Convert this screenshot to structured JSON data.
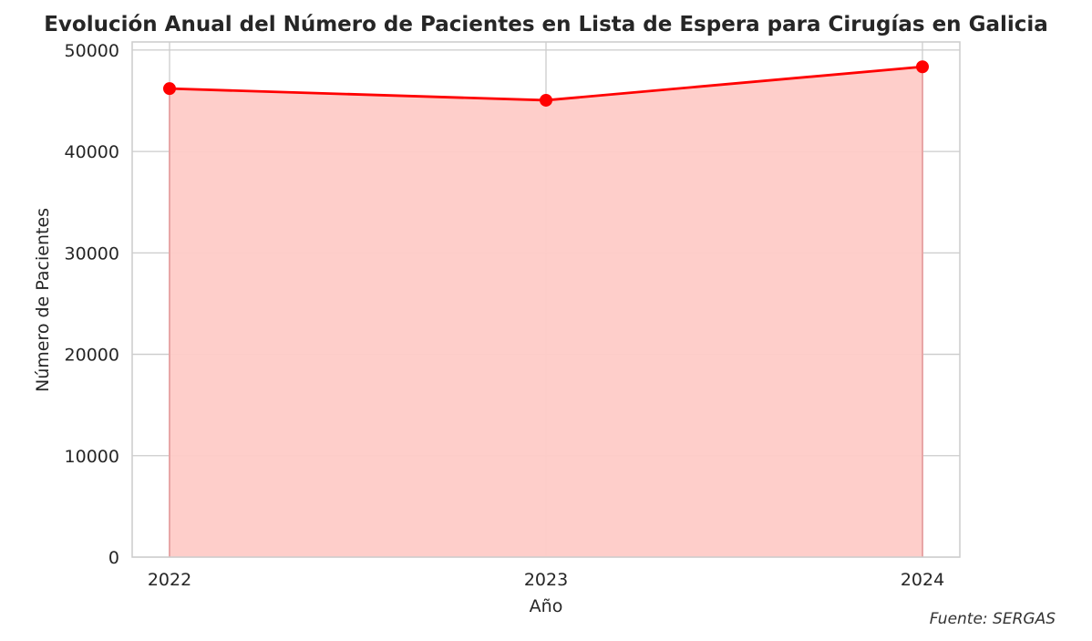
{
  "chart_data": {
    "type": "area",
    "title": "Evolución Anual del Número de Pacientes en Lista de Espera para Cirugías en Galicia",
    "xlabel": "Año",
    "ylabel": "Número de Pacientes",
    "source": "Fuente: SERGAS",
    "x": [
      "2022",
      "2023",
      "2024"
    ],
    "y_ticks": [
      "0",
      "10000",
      "20000",
      "30000",
      "40000",
      "50000"
    ],
    "ylim": [
      0,
      50800
    ],
    "grid": true,
    "markers": true,
    "series": [
      {
        "values": [
          46200,
          45050,
          48350
        ]
      }
    ],
    "colors": {
      "line": "#ff0000",
      "fill": "#fecbc7",
      "fill_edge": "#e8a6a6",
      "grid": "#cccccc",
      "spine": "#cccccc"
    }
  }
}
